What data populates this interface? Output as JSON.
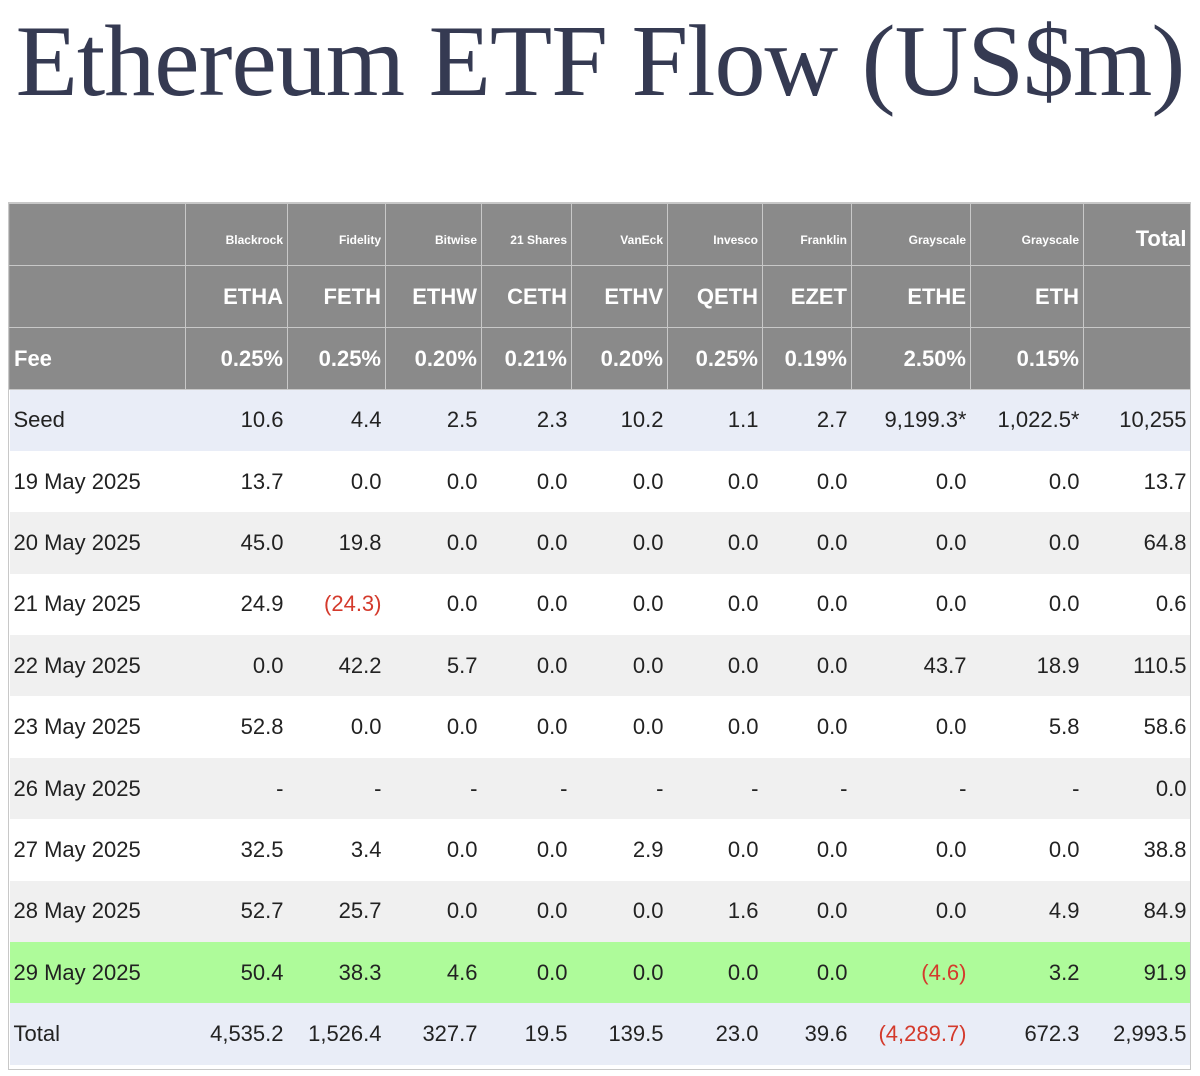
{
  "title": "Ethereum ETF Flow (US$m)",
  "header": {
    "issuers": [
      "Blackrock",
      "Fidelity",
      "Bitwise",
      "21 Shares",
      "VanEck",
      "Invesco",
      "Franklin",
      "Grayscale",
      "Grayscale"
    ],
    "total_label": "Total",
    "tickers": [
      "ETHA",
      "FETH",
      "ETHW",
      "CETH",
      "ETHV",
      "QETH",
      "EZET",
      "ETHE",
      "ETH"
    ],
    "fee_label": "Fee",
    "fees": [
      "0.25%",
      "0.25%",
      "0.20%",
      "0.21%",
      "0.20%",
      "0.25%",
      "0.19%",
      "2.50%",
      "0.15%"
    ]
  },
  "rows": [
    {
      "label": "Seed",
      "values": [
        "10.6",
        "4.4",
        "2.5",
        "2.3",
        "10.2",
        "1.1",
        "2.7",
        "9,199.3*",
        "1,022.5*"
      ],
      "total": "10,255",
      "style": "blue"
    },
    {
      "label": "19 May 2025",
      "values": [
        "13.7",
        "0.0",
        "0.0",
        "0.0",
        "0.0",
        "0.0",
        "0.0",
        "0.0",
        "0.0"
      ],
      "total": "13.7",
      "style": "white"
    },
    {
      "label": "20 May 2025",
      "values": [
        "45.0",
        "19.8",
        "0.0",
        "0.0",
        "0.0",
        "0.0",
        "0.0",
        "0.0",
        "0.0"
      ],
      "total": "64.8",
      "style": "grey"
    },
    {
      "label": "21 May 2025",
      "values": [
        "24.9",
        "(24.3)",
        "0.0",
        "0.0",
        "0.0",
        "0.0",
        "0.0",
        "0.0",
        "0.0"
      ],
      "total": "0.6",
      "style": "white"
    },
    {
      "label": "22 May 2025",
      "values": [
        "0.0",
        "42.2",
        "5.7",
        "0.0",
        "0.0",
        "0.0",
        "0.0",
        "43.7",
        "18.9"
      ],
      "total": "110.5",
      "style": "grey"
    },
    {
      "label": "23 May 2025",
      "values": [
        "52.8",
        "0.0",
        "0.0",
        "0.0",
        "0.0",
        "0.0",
        "0.0",
        "0.0",
        "5.8"
      ],
      "total": "58.6",
      "style": "white"
    },
    {
      "label": "26 May 2025",
      "values": [
        "-",
        "-",
        "-",
        "-",
        "-",
        "-",
        "-",
        "-",
        "-"
      ],
      "total": "0.0",
      "style": "grey"
    },
    {
      "label": "27 May 2025",
      "values": [
        "32.5",
        "3.4",
        "0.0",
        "0.0",
        "2.9",
        "0.0",
        "0.0",
        "0.0",
        "0.0"
      ],
      "total": "38.8",
      "style": "white"
    },
    {
      "label": "28 May 2025",
      "values": [
        "52.7",
        "25.7",
        "0.0",
        "0.0",
        "0.0",
        "1.6",
        "0.0",
        "0.0",
        "4.9"
      ],
      "total": "84.9",
      "style": "grey"
    },
    {
      "label": "29 May 2025",
      "values": [
        "50.4",
        "38.3",
        "4.6",
        "0.0",
        "0.0",
        "0.0",
        "0.0",
        "(4.6)",
        "3.2"
      ],
      "total": "91.9",
      "style": "green"
    },
    {
      "label": "Total",
      "values": [
        "4,535.2",
        "1,526.4",
        "327.7",
        "19.5",
        "139.5",
        "23.0",
        "39.6",
        "(4,289.7)",
        "672.3"
      ],
      "total": "2,993.5",
      "style": "blue"
    }
  ],
  "colors": {
    "title": "#353a52",
    "header_bg": "#8a8a8a",
    "negative": "#d43a2c",
    "highlight_row": "#aefb9a",
    "blue_row": "#e9edf7",
    "grey_row": "#f0f0f0"
  }
}
